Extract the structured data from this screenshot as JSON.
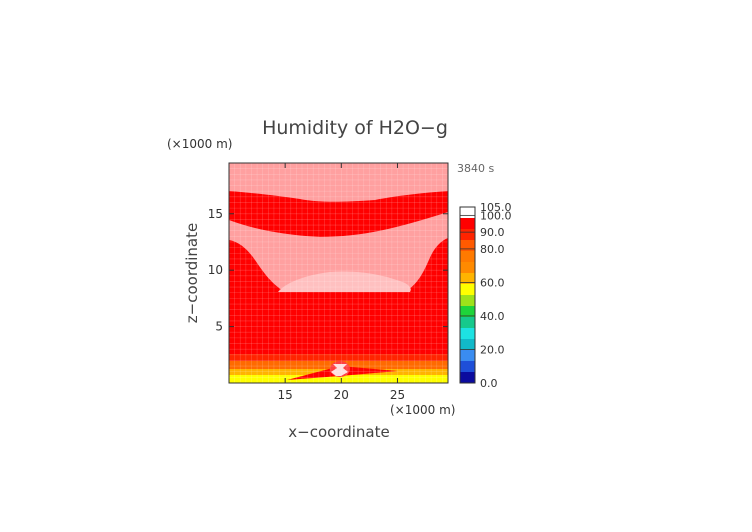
{
  "chart_data": {
    "type": "heatmap",
    "title": "Humidity of H2O−g",
    "time_label": "3840 s",
    "xlabel": "x−coordinate",
    "ylabel": "z−coordinate",
    "x_unit": "(×1000 m)",
    "y_unit": "(×1000 m)",
    "xlim": [
      10,
      29.5
    ],
    "ylim": [
      0,
      19.5
    ],
    "x_ticks": [
      15,
      20,
      25
    ],
    "y_ticks": [
      5,
      10,
      15
    ],
    "grid": true,
    "legend": "right",
    "colorbar": {
      "levels": [
        0,
        10,
        20,
        30,
        40,
        50,
        60,
        70,
        80,
        90,
        100,
        105
      ],
      "tick_labels": [
        "0.0",
        "20.0",
        "40.0",
        "60.0",
        "80.0",
        "90.0",
        "100.0",
        "105.0"
      ],
      "colors": [
        "#0b0b9e",
        "#1e4fd8",
        "#3a8cf0",
        "#11b9c9",
        "#1de2e2",
        "#16c98c",
        "#1ed43a",
        "#9ee21a",
        "#ffff00",
        "#ffb400",
        "#ff8a00",
        "#ff7a00",
        "#ff5a00",
        "#ff2400",
        "#ff0000",
        "#ffffff"
      ]
    },
    "bands": [
      {
        "z_range": [
          0.0,
          0.5
        ],
        "value": 81,
        "color": "#ffff00"
      },
      {
        "z_range": [
          0.5,
          1.2
        ],
        "value": 88,
        "color": "#ffb400"
      },
      {
        "z_range": [
          1.2,
          2.0
        ],
        "value": 93,
        "color": "#ff6a00"
      },
      {
        "z_range": [
          2.0,
          2.8
        ],
        "value": 97,
        "color": "#ff2400"
      },
      {
        "z_range": [
          2.8,
          16.5
        ],
        "value": 100,
        "color": "#ff0000"
      },
      {
        "region": "upper plateau",
        "z_range": [
          16.5,
          19.5
        ],
        "value": 101,
        "color": "#ffa0a0"
      },
      {
        "region": "middle lens",
        "z_range": [
          8.0,
          14.5
        ],
        "value": 101,
        "color": "#ffa0a0"
      },
      {
        "region": "inner core",
        "z_range": [
          8.5,
          10.0
        ],
        "value": 102,
        "color": "#ffc0c0"
      },
      {
        "region": "surface bubble",
        "x_range": [
          19,
          21
        ],
        "z_range": [
          0.4,
          1.8
        ],
        "value": 103,
        "color": "#ffe0e0"
      }
    ]
  }
}
